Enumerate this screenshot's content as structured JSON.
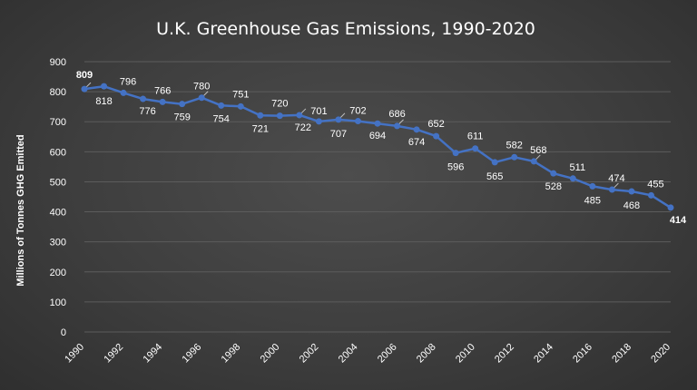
{
  "chart_data": {
    "type": "line",
    "title": "U.K. Greenhouse Gas Emissions, 1990-2020",
    "xlabel": "",
    "ylabel": "Millions of Tonnes GHG Emitted",
    "ylim": [
      0,
      900
    ],
    "yticks": [
      0,
      100,
      200,
      300,
      400,
      500,
      600,
      700,
      800,
      900
    ],
    "xticks": [
      1990,
      1992,
      1994,
      1996,
      1998,
      2000,
      2002,
      2004,
      2006,
      2008,
      2010,
      2012,
      2014,
      2016,
      2018,
      2020
    ],
    "grid": true,
    "legend": "none",
    "colors": {
      "line": "#4472c4",
      "grid": "#5c5c5c",
      "text": "#ffffff"
    },
    "x": [
      1990,
      1991,
      1992,
      1993,
      1994,
      1995,
      1996,
      1997,
      1998,
      1999,
      2000,
      2001,
      2002,
      2003,
      2004,
      2005,
      2006,
      2007,
      2008,
      2009,
      2010,
      2011,
      2012,
      2013,
      2014,
      2015,
      2016,
      2017,
      2018,
      2019,
      2020
    ],
    "series": [
      {
        "values": [
          809,
          818,
          796,
          776,
          766,
          759,
          780,
          754,
          751,
          721,
          720,
          722,
          701,
          707,
          702,
          694,
          686,
          674,
          652,
          596,
          611,
          565,
          582,
          568,
          528,
          511,
          485,
          474,
          468,
          455,
          414
        ]
      }
    ]
  }
}
